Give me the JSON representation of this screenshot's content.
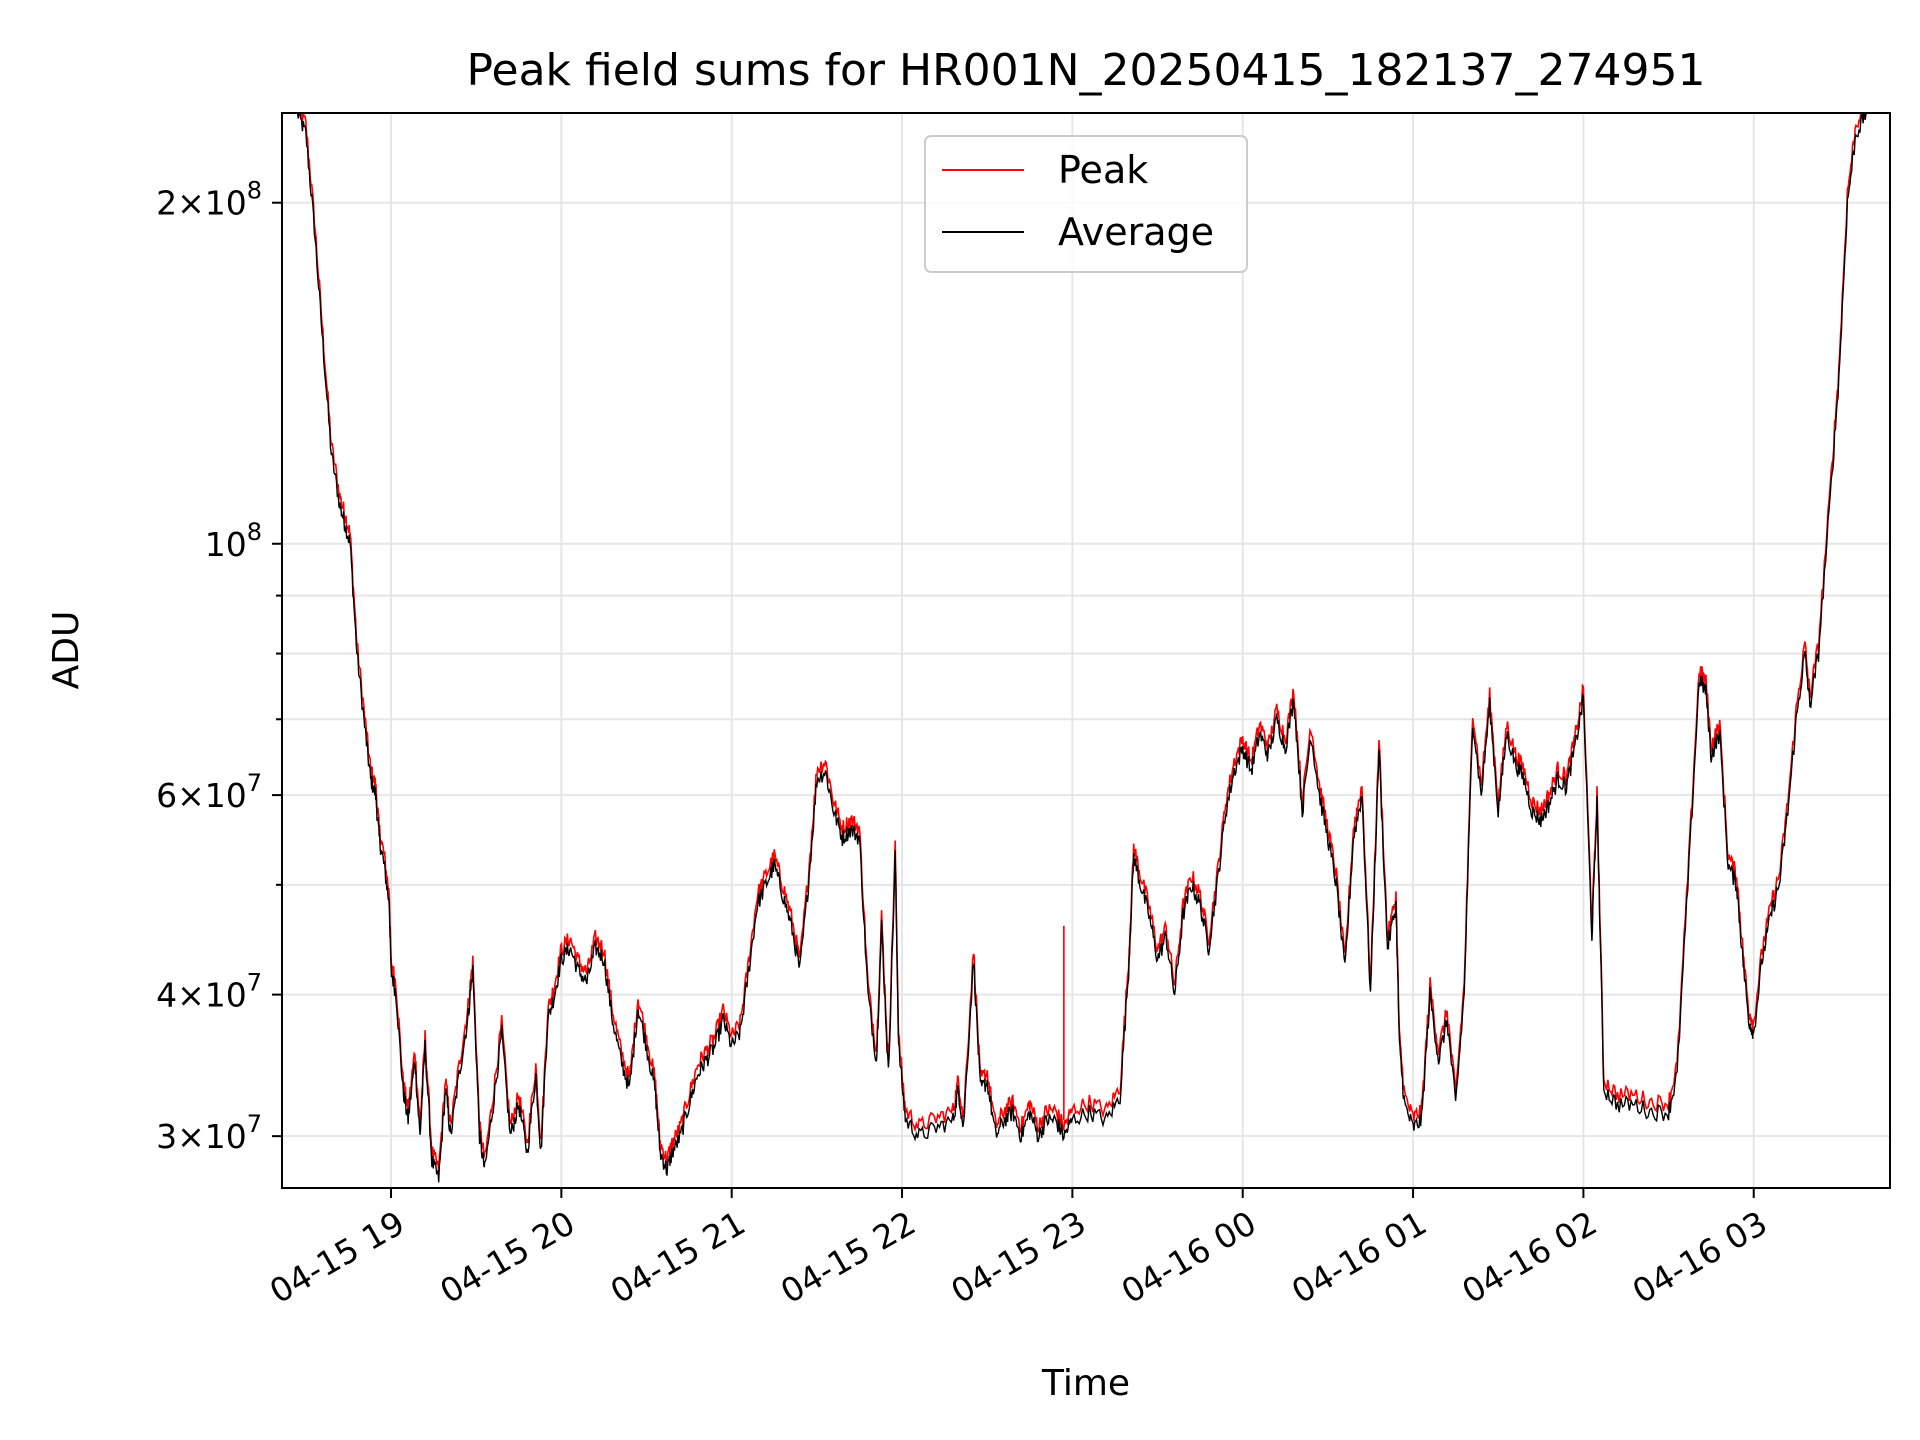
{
  "chart_data": {
    "type": "line",
    "title": "Peak field sums for HR001N_20250415_182137_274951",
    "xlabel": "Time",
    "ylabel": "ADU",
    "yscale": "log",
    "grid": true,
    "legend_position": "upper-center",
    "xlim": [
      18.36,
      27.8
    ],
    "ylim": [
      27000000,
      240000000
    ],
    "x_ticks": [
      {
        "value": 19,
        "label": "04-15 19"
      },
      {
        "value": 20,
        "label": "04-15 20"
      },
      {
        "value": 21,
        "label": "04-15 21"
      },
      {
        "value": 22,
        "label": "04-15 22"
      },
      {
        "value": 23,
        "label": "04-15 23"
      },
      {
        "value": 24,
        "label": "04-16 00"
      },
      {
        "value": 25,
        "label": "04-16 01"
      },
      {
        "value": 26,
        "label": "04-16 02"
      },
      {
        "value": 27,
        "label": "04-16 03"
      }
    ],
    "y_ticks": [
      {
        "value": 30000000,
        "mant": "3",
        "exp": "7"
      },
      {
        "value": 40000000,
        "mant": "4",
        "exp": "7"
      },
      {
        "value": 60000000,
        "mant": "6",
        "exp": "7"
      },
      {
        "value": 100000000,
        "mant": "",
        "exp": "8"
      },
      {
        "value": 200000000,
        "mant": "2",
        "exp": "8"
      }
    ],
    "y_minor": [
      50000000,
      70000000,
      80000000,
      90000000
    ],
    "series": [
      {
        "name": "Peak",
        "color": "#ff0000",
        "offset_pct": 2.0
      },
      {
        "name": "Average",
        "color": "#000000",
        "offset_pct": 0.0
      }
    ],
    "average_points": [
      [
        18.45,
        240000000
      ],
      [
        18.5,
        230000000
      ],
      [
        18.55,
        190000000
      ],
      [
        18.6,
        150000000
      ],
      [
        18.65,
        120000000
      ],
      [
        18.7,
        108000000
      ],
      [
        18.73,
        104000000
      ],
      [
        18.76,
        100000000
      ],
      [
        18.8,
        80000000
      ],
      [
        18.85,
        68000000
      ],
      [
        18.88,
        62000000
      ],
      [
        18.91,
        60000000
      ],
      [
        18.93,
        55000000
      ],
      [
        18.96,
        52000000
      ],
      [
        18.99,
        48000000
      ],
      [
        19.0,
        42000000
      ],
      [
        19.03,
        40000000
      ],
      [
        19.07,
        33000000
      ],
      [
        19.1,
        31000000
      ],
      [
        19.14,
        35000000
      ],
      [
        19.17,
        30000000
      ],
      [
        19.2,
        36000000
      ],
      [
        19.24,
        28500000
      ],
      [
        19.28,
        27500000
      ],
      [
        19.32,
        33000000
      ],
      [
        19.35,
        30000000
      ],
      [
        19.4,
        34000000
      ],
      [
        19.45,
        38000000
      ],
      [
        19.48,
        42000000
      ],
      [
        19.52,
        30000000
      ],
      [
        19.55,
        28000000
      ],
      [
        19.6,
        32000000
      ],
      [
        19.65,
        37000000
      ],
      [
        19.7,
        30000000
      ],
      [
        19.75,
        32000000
      ],
      [
        19.8,
        29000000
      ],
      [
        19.85,
        34000000
      ],
      [
        19.88,
        29000000
      ],
      [
        19.92,
        38000000
      ],
      [
        19.96,
        40000000
      ],
      [
        20.0,
        43000000
      ],
      [
        20.05,
        44000000
      ],
      [
        20.1,
        42000000
      ],
      [
        20.15,
        41000000
      ],
      [
        20.2,
        44000000
      ],
      [
        20.25,
        43000000
      ],
      [
        20.3,
        38000000
      ],
      [
        20.35,
        35000000
      ],
      [
        20.4,
        33000000
      ],
      [
        20.45,
        39000000
      ],
      [
        20.5,
        36000000
      ],
      [
        20.55,
        33000000
      ],
      [
        20.58,
        29000000
      ],
      [
        20.62,
        28000000
      ],
      [
        20.65,
        29000000
      ],
      [
        20.7,
        30000000
      ],
      [
        20.75,
        32000000
      ],
      [
        20.8,
        34000000
      ],
      [
        20.85,
        35000000
      ],
      [
        20.9,
        36000000
      ],
      [
        20.95,
        38000000
      ],
      [
        21.0,
        36000000
      ],
      [
        21.05,
        37000000
      ],
      [
        21.1,
        42000000
      ],
      [
        21.15,
        48000000
      ],
      [
        21.2,
        50000000
      ],
      [
        21.25,
        52000000
      ],
      [
        21.3,
        49000000
      ],
      [
        21.35,
        46000000
      ],
      [
        21.4,
        42000000
      ],
      [
        21.45,
        50000000
      ],
      [
        21.5,
        62000000
      ],
      [
        21.55,
        63000000
      ],
      [
        21.6,
        58000000
      ],
      [
        21.65,
        55000000
      ],
      [
        21.7,
        56000000
      ],
      [
        21.75,
        55000000
      ],
      [
        21.8,
        40000000
      ],
      [
        21.85,
        35000000
      ],
      [
        21.88,
        46000000
      ],
      [
        21.92,
        34000000
      ],
      [
        21.96,
        53000000
      ],
      [
        21.98,
        36000000
      ],
      [
        22.02,
        31000000
      ],
      [
        22.1,
        30000000
      ],
      [
        22.2,
        30500000
      ],
      [
        22.3,
        31000000
      ],
      [
        22.33,
        33000000
      ],
      [
        22.36,
        30500000
      ],
      [
        22.42,
        43000000
      ],
      [
        22.46,
        33000000
      ],
      [
        22.5,
        33500000
      ],
      [
        22.55,
        30000000
      ],
      [
        22.6,
        31000000
      ],
      [
        22.65,
        31500000
      ],
      [
        22.7,
        30000000
      ],
      [
        22.75,
        31500000
      ],
      [
        22.8,
        30000000
      ],
      [
        22.85,
        31000000
      ],
      [
        22.9,
        31000000
      ],
      [
        22.95,
        30000000
      ],
      [
        23.0,
        31000000
      ],
      [
        23.1,
        31500000
      ],
      [
        23.2,
        31000000
      ],
      [
        23.28,
        32500000
      ],
      [
        23.33,
        42000000
      ],
      [
        23.36,
        53000000
      ],
      [
        23.4,
        50000000
      ],
      [
        23.45,
        47000000
      ],
      [
        23.5,
        43000000
      ],
      [
        23.55,
        45000000
      ],
      [
        23.6,
        40000000
      ],
      [
        23.65,
        47000000
      ],
      [
        23.7,
        50000000
      ],
      [
        23.75,
        48000000
      ],
      [
        23.8,
        44000000
      ],
      [
        23.85,
        50000000
      ],
      [
        23.9,
        58000000
      ],
      [
        23.95,
        63000000
      ],
      [
        24.0,
        66000000
      ],
      [
        24.05,
        63000000
      ],
      [
        24.1,
        68000000
      ],
      [
        24.15,
        65000000
      ],
      [
        24.2,
        70000000
      ],
      [
        24.25,
        66000000
      ],
      [
        24.3,
        73000000
      ],
      [
        24.35,
        58000000
      ],
      [
        24.4,
        68000000
      ],
      [
        24.45,
        60000000
      ],
      [
        24.5,
        55000000
      ],
      [
        24.55,
        50000000
      ],
      [
        24.6,
        42000000
      ],
      [
        24.65,
        55000000
      ],
      [
        24.7,
        60000000
      ],
      [
        24.75,
        40000000
      ],
      [
        24.8,
        66000000
      ],
      [
        24.85,
        44000000
      ],
      [
        24.9,
        48000000
      ],
      [
        24.92,
        36000000
      ],
      [
        24.95,
        32000000
      ],
      [
        25.0,
        30500000
      ],
      [
        25.05,
        31000000
      ],
      [
        25.1,
        40000000
      ],
      [
        25.15,
        35000000
      ],
      [
        25.2,
        38000000
      ],
      [
        25.25,
        32000000
      ],
      [
        25.3,
        40000000
      ],
      [
        25.35,
        70000000
      ],
      [
        25.4,
        60000000
      ],
      [
        25.45,
        72000000
      ],
      [
        25.5,
        58000000
      ],
      [
        25.55,
        68000000
      ],
      [
        25.6,
        64000000
      ],
      [
        25.65,
        62000000
      ],
      [
        25.7,
        58000000
      ],
      [
        25.75,
        57000000
      ],
      [
        25.8,
        59000000
      ],
      [
        25.85,
        62000000
      ],
      [
        25.9,
        61000000
      ],
      [
        25.95,
        66000000
      ],
      [
        26.0,
        73000000
      ],
      [
        26.05,
        45000000
      ],
      [
        26.08,
        59000000
      ],
      [
        26.12,
        33000000
      ],
      [
        26.2,
        32000000
      ],
      [
        26.3,
        32000000
      ],
      [
        26.4,
        31500000
      ],
      [
        26.5,
        31500000
      ],
      [
        26.55,
        34000000
      ],
      [
        26.62,
        52000000
      ],
      [
        26.68,
        76000000
      ],
      [
        26.72,
        74000000
      ],
      [
        26.75,
        65000000
      ],
      [
        26.8,
        68000000
      ],
      [
        26.85,
        52000000
      ],
      [
        26.9,
        50000000
      ],
      [
        26.93,
        44000000
      ],
      [
        26.97,
        38000000
      ],
      [
        27.0,
        37000000
      ],
      [
        27.05,
        43000000
      ],
      [
        27.1,
        47000000
      ],
      [
        27.15,
        50000000
      ],
      [
        27.2,
        58000000
      ],
      [
        27.25,
        70000000
      ],
      [
        27.3,
        80000000
      ],
      [
        27.33,
        72000000
      ],
      [
        27.38,
        80000000
      ],
      [
        27.45,
        110000000
      ],
      [
        27.5,
        140000000
      ],
      [
        27.55,
        200000000
      ],
      [
        27.6,
        230000000
      ],
      [
        27.66,
        240000000
      ]
    ]
  }
}
